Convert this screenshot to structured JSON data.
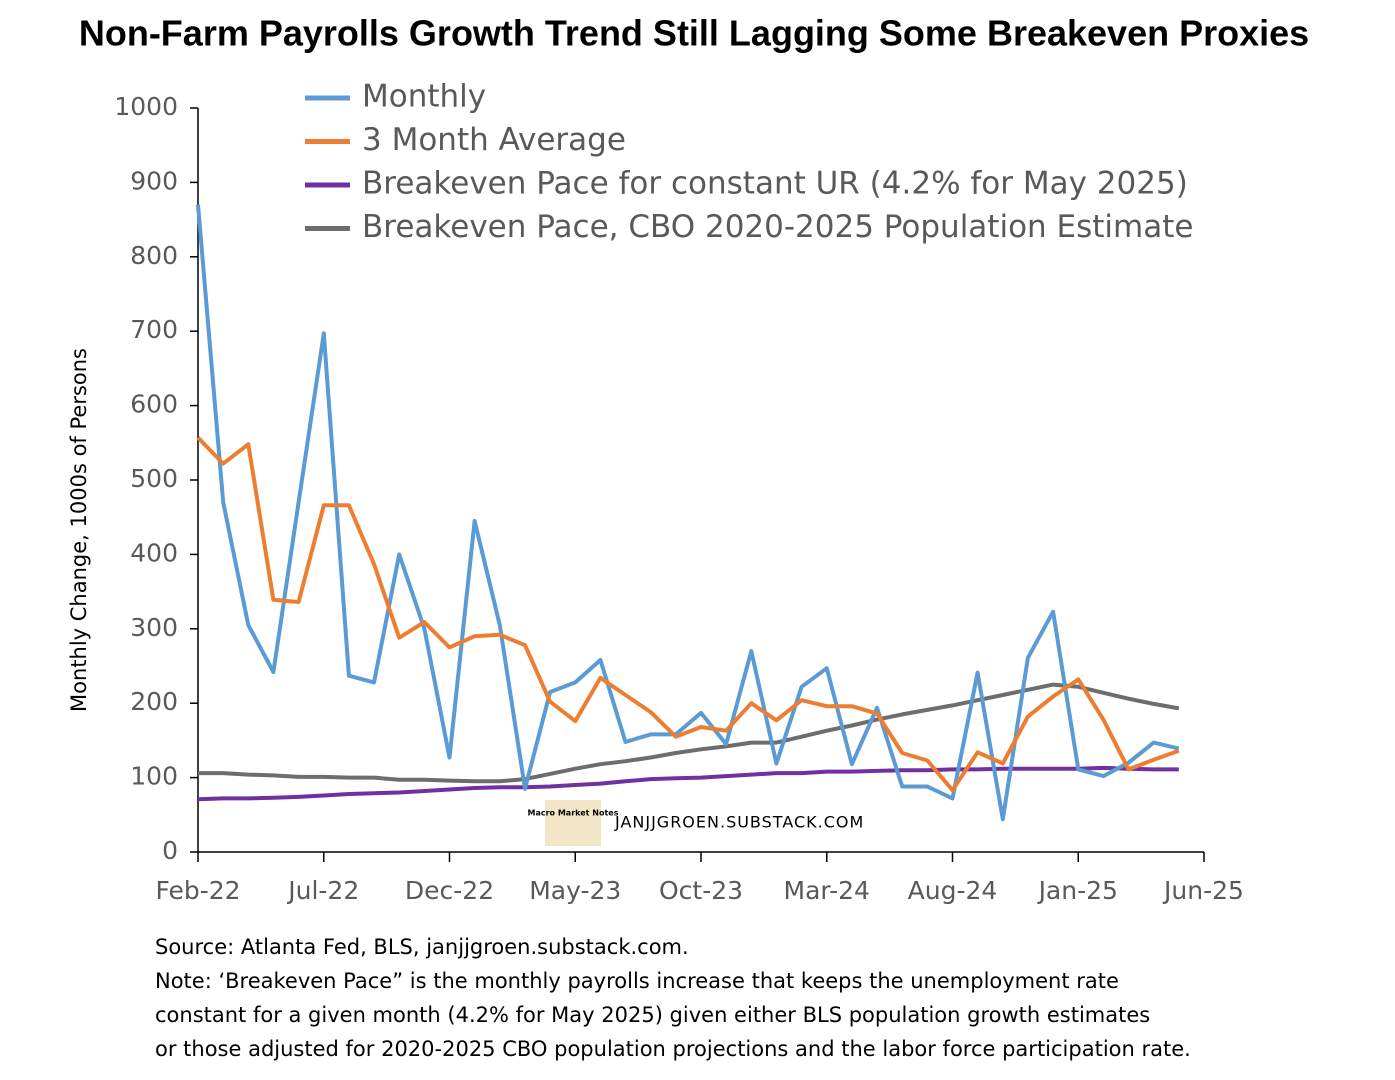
{
  "chart_data": {
    "type": "line",
    "title": "Non-Farm Payrolls Growth Trend Still Lagging Some Breakeven Proxies",
    "y_label": "Monthly Change, 1000s of Persons",
    "watermark": "JANJJGROEN.SUBSTACK.COM",
    "logo_text": "Macro Market Notes",
    "notes": [
      "Source: Atlanta Fed, BLS, janjjgroen.substack.com.",
      "Note: ‘Breakeven Pace” is the monthly payrolls increase that keeps the unemployment rate",
      "constant for a given month (4.2% for May 2025) given either BLS population growth estimates",
      "or those adjusted for 2020-2025 CBO population projections and the labor force participation rate."
    ],
    "categories": [
      "Feb-22",
      null,
      null,
      null,
      null,
      "Jul-22",
      null,
      null,
      null,
      null,
      "Dec-22",
      null,
      null,
      null,
      null,
      "May-23",
      null,
      null,
      null,
      null,
      "Oct-23",
      null,
      null,
      null,
      null,
      "Mar-24",
      null,
      null,
      null,
      null,
      "Aug-24",
      null,
      null,
      null,
      null,
      "Jan-25",
      null,
      null,
      null,
      null,
      "Jun-25"
    ],
    "ylim": [
      0,
      1000
    ],
    "yticks": [
      0,
      100,
      200,
      300,
      400,
      500,
      600,
      700,
      800,
      900,
      1000
    ],
    "series": [
      {
        "name": "Monthly",
        "color": "#5b9bd5",
        "values": [
          870,
          470,
          305,
          242,
          470,
          697,
          237,
          228,
          400,
          300,
          127,
          445,
          305,
          85,
          215,
          228,
          258,
          148,
          158,
          158,
          187,
          145,
          270,
          119,
          222,
          247,
          118,
          194,
          88,
          88,
          72,
          241,
          44,
          261,
          323,
          111,
          102,
          120,
          147,
          139,
          null
        ]
      },
      {
        "name": "3 Month Average",
        "color": "#ed7d31",
        "values": [
          557,
          522,
          548,
          339,
          336,
          466,
          466,
          387,
          288,
          309,
          275,
          290,
          292,
          278,
          202,
          176,
          234,
          211,
          188,
          155,
          168,
          163,
          200,
          177,
          204,
          196,
          196,
          186,
          133,
          123,
          83,
          134,
          119,
          182,
          209,
          232,
          178,
          111,
          124,
          136,
          null
        ]
      },
      {
        "name": "Breakeven Pace for constant UR (4.2% for May 2025)",
        "color": "#7030a0",
        "values": [
          71,
          72,
          72,
          73,
          74,
          76,
          78,
          79,
          80,
          82,
          84,
          86,
          87,
          87,
          88,
          90,
          92,
          95,
          98,
          99,
          100,
          102,
          104,
          106,
          106,
          108,
          108,
          109,
          110,
          110,
          111,
          111,
          112,
          112,
          112,
          112,
          113,
          112,
          111,
          111,
          null
        ]
      },
      {
        "name": "Breakeven Pace, CBO 2020-2025 Population Estimate",
        "color": "#6d6d6d",
        "values": [
          106,
          106,
          104,
          103,
          101,
          101,
          100,
          100,
          97,
          97,
          96,
          95,
          95,
          98,
          105,
          112,
          118,
          122,
          127,
          133,
          138,
          142,
          147,
          147,
          155,
          163,
          170,
          178,
          185,
          191,
          197,
          204,
          211,
          218,
          225,
          222,
          214,
          206,
          199,
          193,
          null
        ]
      }
    ]
  }
}
